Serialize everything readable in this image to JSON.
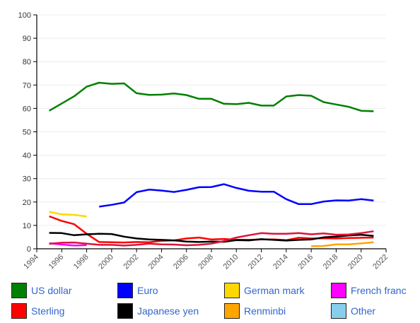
{
  "chart_data": {
    "type": "line",
    "title": "",
    "xlabel": "",
    "ylabel": "",
    "xlim": [
      1994,
      2022
    ],
    "ylim": [
      0,
      100
    ],
    "x_ticks": [
      1994,
      1996,
      1998,
      2000,
      2002,
      2004,
      2006,
      2008,
      2010,
      2012,
      2014,
      2016,
      2018,
      2020,
      2022
    ],
    "y_ticks": [
      0,
      10,
      20,
      30,
      40,
      50,
      60,
      70,
      80,
      90,
      100
    ],
    "grid": "horizontal",
    "legend_position": "bottom",
    "series": [
      {
        "name": "US dollar",
        "color": "#008000",
        "points": [
          [
            1995,
            59.0
          ],
          [
            1996,
            62.1
          ],
          [
            1997,
            65.2
          ],
          [
            1998,
            69.3
          ],
          [
            1999,
            71.0
          ],
          [
            2000,
            70.5
          ],
          [
            2001,
            70.7
          ],
          [
            2002,
            66.5
          ],
          [
            2003,
            65.8
          ],
          [
            2004,
            65.9
          ],
          [
            2005,
            66.4
          ],
          [
            2006,
            65.7
          ],
          [
            2007,
            64.1
          ],
          [
            2008,
            64.1
          ],
          [
            2009,
            62.0
          ],
          [
            2010,
            61.8
          ],
          [
            2011,
            62.4
          ],
          [
            2012,
            61.2
          ],
          [
            2013,
            61.2
          ],
          [
            2014,
            65.1
          ],
          [
            2015,
            65.7
          ],
          [
            2016,
            65.4
          ],
          [
            2017,
            62.7
          ],
          [
            2018,
            61.7
          ],
          [
            2019,
            60.7
          ],
          [
            2020,
            59.0
          ],
          [
            2021,
            58.8
          ]
        ]
      },
      {
        "name": "Euro",
        "color": "#0000ff",
        "points": [
          [
            1999,
            18.0
          ],
          [
            2000,
            18.8
          ],
          [
            2001,
            19.8
          ],
          [
            2002,
            24.2
          ],
          [
            2003,
            25.3
          ],
          [
            2004,
            24.9
          ],
          [
            2005,
            24.3
          ],
          [
            2006,
            25.2
          ],
          [
            2007,
            26.3
          ],
          [
            2008,
            26.4
          ],
          [
            2009,
            27.6
          ],
          [
            2010,
            26.0
          ],
          [
            2011,
            24.8
          ],
          [
            2012,
            24.4
          ],
          [
            2013,
            24.4
          ],
          [
            2014,
            21.2
          ],
          [
            2015,
            19.1
          ],
          [
            2016,
            19.1
          ],
          [
            2017,
            20.2
          ],
          [
            2018,
            20.7
          ],
          [
            2019,
            20.6
          ],
          [
            2020,
            21.2
          ],
          [
            2021,
            20.6
          ]
        ]
      },
      {
        "name": "German mark",
        "color": "#ffd700",
        "points": [
          [
            1995,
            15.8
          ],
          [
            1996,
            14.7
          ],
          [
            1997,
            14.5
          ],
          [
            1998,
            13.8
          ]
        ]
      },
      {
        "name": "French franc",
        "color": "#ff00ff",
        "points": [
          [
            1995,
            2.4
          ],
          [
            1996,
            1.8
          ],
          [
            1997,
            1.4
          ],
          [
            1998,
            1.6
          ]
        ]
      },
      {
        "name": "Sterling",
        "color": "#ff0000",
        "points": [
          [
            1995,
            13.9
          ],
          [
            1996,
            11.9
          ],
          [
            1997,
            10.5
          ],
          [
            1998,
            6.4
          ],
          [
            1999,
            2.9
          ],
          [
            2000,
            2.8
          ],
          [
            2001,
            2.7
          ],
          [
            2002,
            2.9
          ],
          [
            2003,
            2.8
          ],
          [
            2004,
            3.4
          ],
          [
            2005,
            3.6
          ],
          [
            2006,
            4.4
          ],
          [
            2007,
            4.8
          ],
          [
            2008,
            4.0
          ],
          [
            2009,
            4.2
          ],
          [
            2010,
            3.9
          ],
          [
            2011,
            3.8
          ],
          [
            2012,
            4.0
          ],
          [
            2013,
            4.0
          ],
          [
            2014,
            3.7
          ],
          [
            2015,
            4.7
          ],
          [
            2016,
            4.4
          ],
          [
            2017,
            4.5
          ],
          [
            2018,
            4.4
          ],
          [
            2019,
            4.6
          ],
          [
            2020,
            4.7
          ],
          [
            2021,
            4.8
          ]
        ]
      },
      {
        "name": "Japanese yen",
        "color": "#000000",
        "points": [
          [
            1995,
            6.8
          ],
          [
            1996,
            6.7
          ],
          [
            1997,
            5.8
          ],
          [
            1998,
            6.2
          ],
          [
            1999,
            6.4
          ],
          [
            2000,
            6.3
          ],
          [
            2001,
            5.2
          ],
          [
            2002,
            4.4
          ],
          [
            2003,
            4.0
          ],
          [
            2004,
            3.8
          ],
          [
            2005,
            3.6
          ],
          [
            2006,
            3.1
          ],
          [
            2007,
            2.9
          ],
          [
            2008,
            3.1
          ],
          [
            2009,
            3.0
          ],
          [
            2010,
            3.7
          ],
          [
            2011,
            3.6
          ],
          [
            2012,
            4.1
          ],
          [
            2013,
            3.8
          ],
          [
            2014,
            3.5
          ],
          [
            2015,
            3.8
          ],
          [
            2016,
            4.0
          ],
          [
            2017,
            4.9
          ],
          [
            2018,
            5.2
          ],
          [
            2019,
            5.7
          ],
          [
            2020,
            6.0
          ],
          [
            2021,
            5.5
          ]
        ]
      },
      {
        "name": "Renminbi",
        "color": "#ffa500",
        "points": [
          [
            2016,
            1.1
          ],
          [
            2017,
            1.2
          ],
          [
            2018,
            1.9
          ],
          [
            2019,
            1.9
          ],
          [
            2020,
            2.3
          ],
          [
            2021,
            2.8
          ]
        ]
      },
      {
        "name": "Other",
        "color": "#87ceeb",
        "points": []
      },
      {
        "name": "",
        "color": "#dc143c",
        "points": [
          [
            1995,
            2.1
          ],
          [
            1996,
            2.6
          ],
          [
            1997,
            2.7
          ],
          [
            1998,
            2.2
          ],
          [
            1999,
            1.7
          ],
          [
            2000,
            1.7
          ],
          [
            2001,
            1.4
          ],
          [
            2002,
            1.7
          ],
          [
            2003,
            2.2
          ],
          [
            2004,
            1.9
          ],
          [
            2005,
            1.8
          ],
          [
            2006,
            1.5
          ],
          [
            2007,
            1.7
          ],
          [
            2008,
            2.2
          ],
          [
            2009,
            3.3
          ],
          [
            2010,
            4.8
          ],
          [
            2011,
            5.8
          ],
          [
            2012,
            6.7
          ],
          [
            2013,
            6.4
          ],
          [
            2014,
            6.4
          ],
          [
            2015,
            6.7
          ],
          [
            2016,
            6.2
          ],
          [
            2017,
            6.6
          ],
          [
            2018,
            6.0
          ],
          [
            2019,
            6.1
          ],
          [
            2020,
            6.7
          ],
          [
            2021,
            7.5
          ]
        ]
      }
    ]
  },
  "legend": {
    "items": [
      {
        "label": "US dollar",
        "color": "#008000"
      },
      {
        "label": "Euro",
        "color": "#0000ff"
      },
      {
        "label": "German mark",
        "color": "#ffd700"
      },
      {
        "label": "French franc",
        "color": "#ff00ff"
      },
      {
        "label": "Sterling",
        "color": "#ff0000"
      },
      {
        "label": "Japanese yen",
        "color": "#000000"
      },
      {
        "label": "Renminbi",
        "color": "#ffa500"
      },
      {
        "label": "Other",
        "color": "#87ceeb"
      }
    ]
  }
}
